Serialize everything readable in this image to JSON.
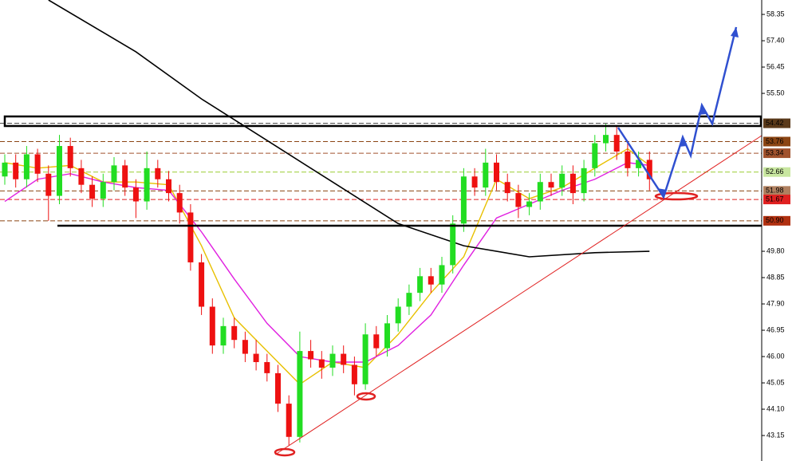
{
  "chart_data": {
    "type": "candlestick",
    "ylim": [
      42.23,
      58.87
    ],
    "yticks": [
      58.35,
      {
        "value": 57.4,
        "label": "57.40"
      },
      {
        "value": 56.45,
        "label": "56.45"
      },
      {
        "value": 55.5,
        "label": "55.50"
      },
      {
        "value": 49.8,
        "label": "49.80"
      },
      {
        "value": 48.85,
        "label": "48.85"
      },
      {
        "value": 47.9,
        "label": "47.90"
      },
      {
        "value": 46.95,
        "label": "46.95"
      },
      {
        "value": 46,
        "label": "46.00"
      },
      {
        "value": 45.05,
        "label": "45.05"
      },
      {
        "value": 44.1,
        "label": "44.10"
      },
      {
        "value": 43.15,
        "label": "43.15"
      }
    ],
    "up_color": "#22dd22",
    "down_color": "#ee1111",
    "candles": [
      [
        52.5,
        53.3,
        52.2,
        53.0
      ],
      [
        53.0,
        53.3,
        52.1,
        52.4
      ],
      [
        52.4,
        53.6,
        52.1,
        53.3
      ],
      [
        53.3,
        53.5,
        52.3,
        52.6
      ],
      [
        52.6,
        52.9,
        50.9,
        51.8
      ],
      [
        51.8,
        54.0,
        51.5,
        53.6
      ],
      [
        53.6,
        53.9,
        52.5,
        52.8
      ],
      [
        52.8,
        53.1,
        51.9,
        52.2
      ],
      [
        52.2,
        52.5,
        51.4,
        51.7
      ],
      [
        51.7,
        52.6,
        51.4,
        52.3
      ],
      [
        52.3,
        53.2,
        52.0,
        52.9
      ],
      [
        52.9,
        53.1,
        51.8,
        52.1
      ],
      [
        52.1,
        52.4,
        51.0,
        51.6
      ],
      [
        51.6,
        53.4,
        51.3,
        52.8
      ],
      [
        52.8,
        53.1,
        52.1,
        52.4
      ],
      [
        52.4,
        52.7,
        51.6,
        51.9
      ],
      [
        51.9,
        52.2,
        50.8,
        51.2
      ],
      [
        51.2,
        51.5,
        49.1,
        49.4
      ],
      [
        49.4,
        49.7,
        47.5,
        47.8
      ],
      [
        47.8,
        48.1,
        46.1,
        46.4
      ],
      [
        46.4,
        47.4,
        46.1,
        47.1
      ],
      [
        47.1,
        47.4,
        46.3,
        46.6
      ],
      [
        46.6,
        46.9,
        45.8,
        46.1
      ],
      [
        46.1,
        46.6,
        45.5,
        45.8
      ],
      [
        45.8,
        46.1,
        45.1,
        45.4
      ],
      [
        45.4,
        45.7,
        44.0,
        44.3
      ],
      [
        44.3,
        44.6,
        42.8,
        43.1
      ],
      [
        43.1,
        46.9,
        42.9,
        46.2
      ],
      [
        46.2,
        46.6,
        45.6,
        45.9
      ],
      [
        45.9,
        46.2,
        45.2,
        45.6
      ],
      [
        45.6,
        46.4,
        45.3,
        46.1
      ],
      [
        46.1,
        46.4,
        45.4,
        45.7
      ],
      [
        45.7,
        46.0,
        44.6,
        45.0
      ],
      [
        45.0,
        47.2,
        44.8,
        46.8
      ],
      [
        46.8,
        47.1,
        46.0,
        46.3
      ],
      [
        46.3,
        47.5,
        46.0,
        47.2
      ],
      [
        47.2,
        48.1,
        46.9,
        47.8
      ],
      [
        47.8,
        48.6,
        47.5,
        48.3
      ],
      [
        48.3,
        49.2,
        48.0,
        48.9
      ],
      [
        48.9,
        49.2,
        48.3,
        48.6
      ],
      [
        48.6,
        49.6,
        48.3,
        49.3
      ],
      [
        49.3,
        51.1,
        49.0,
        50.8
      ],
      [
        50.8,
        52.8,
        50.5,
        52.5
      ],
      [
        52.5,
        52.8,
        51.8,
        52.1
      ],
      [
        52.1,
        53.5,
        51.8,
        53.0
      ],
      [
        53.0,
        53.3,
        52.0,
        52.3
      ],
      [
        52.3,
        52.6,
        51.6,
        51.9
      ],
      [
        51.9,
        52.2,
        51.0,
        51.4
      ],
      [
        51.4,
        51.9,
        51.1,
        51.6
      ],
      [
        51.6,
        52.6,
        51.3,
        52.3
      ],
      [
        52.3,
        52.6,
        51.8,
        52.1
      ],
      [
        52.1,
        52.9,
        51.8,
        52.6
      ],
      [
        52.6,
        52.9,
        51.5,
        51.9
      ],
      [
        51.9,
        53.1,
        51.6,
        52.8
      ],
      [
        52.8,
        54.0,
        52.5,
        53.7
      ],
      [
        53.7,
        54.4,
        53.4,
        54.0
      ],
      [
        54.0,
        54.3,
        53.1,
        53.4
      ],
      [
        53.4,
        53.7,
        52.5,
        52.8
      ],
      [
        52.8,
        53.4,
        52.5,
        53.1
      ],
      [
        53.1,
        53.4,
        52.0,
        52.4
      ]
    ],
    "lines": [
      {
        "color": "#e8c000",
        "x": [
          0,
          3,
          6,
          9,
          12,
          15,
          18,
          21,
          24,
          27,
          30,
          33,
          36,
          39,
          42,
          45,
          48,
          51,
          54,
          57,
          59
        ],
        "values": [
          53.0,
          52.8,
          52.9,
          52.3,
          52.3,
          52.2,
          50.0,
          47.4,
          46.2,
          45.0,
          45.8,
          45.6,
          46.8,
          48.3,
          49.6,
          52.4,
          51.7,
          52.1,
          52.8,
          53.5,
          52.9
        ]
      },
      {
        "color": "#e020e0",
        "x": [
          0,
          3,
          6,
          9,
          12,
          15,
          18,
          21,
          24,
          27,
          30,
          33,
          36,
          39,
          42,
          45,
          48,
          51,
          54,
          57,
          59
        ],
        "values": [
          51.6,
          52.4,
          52.6,
          52.3,
          52.1,
          52.0,
          50.5,
          48.8,
          47.2,
          46.0,
          45.8,
          45.8,
          46.4,
          47.5,
          49.3,
          51.0,
          51.5,
          52.0,
          52.4,
          53.0,
          52.9
        ]
      },
      {
        "color": "#000000",
        "x": [
          4,
          12,
          18,
          24,
          30,
          36,
          42,
          48,
          54,
          59
        ],
        "values": [
          58.87,
          57.0,
          55.3,
          53.8,
          52.3,
          50.8,
          50.0,
          49.6,
          49.75,
          49.8
        ]
      }
    ],
    "levels": [
      {
        "value": 54.42,
        "label": "54.42",
        "bg": "#5a3a1a",
        "fg": "#ffffff",
        "line": "#444444"
      },
      {
        "value": 53.76,
        "label": "53.76",
        "bg": "#8b4513",
        "fg": "#ffffff",
        "line": "#8b4513"
      },
      {
        "value": 53.34,
        "label": "53.34",
        "bg": "#a0522d",
        "fg": "#ffffff",
        "line": "#a0522d"
      },
      {
        "value": 52.66,
        "label": "52.66",
        "bg": "#c8e6a0",
        "fg": "#ffffff",
        "line": "#9acd32"
      },
      {
        "value": 51.98,
        "label": "51.98",
        "bg": "#b08060",
        "fg": "#ffffff",
        "line": "#8b4513"
      },
      {
        "value": 51.67,
        "label": "51.67",
        "bg": "#e02020",
        "fg": "#ffffff",
        "line": "#e02020"
      },
      {
        "value": 50.9,
        "label": "50.90",
        "bg": "#b03010",
        "fg": "#ffffff",
        "line": "#8b4513"
      }
    ]
  }
}
